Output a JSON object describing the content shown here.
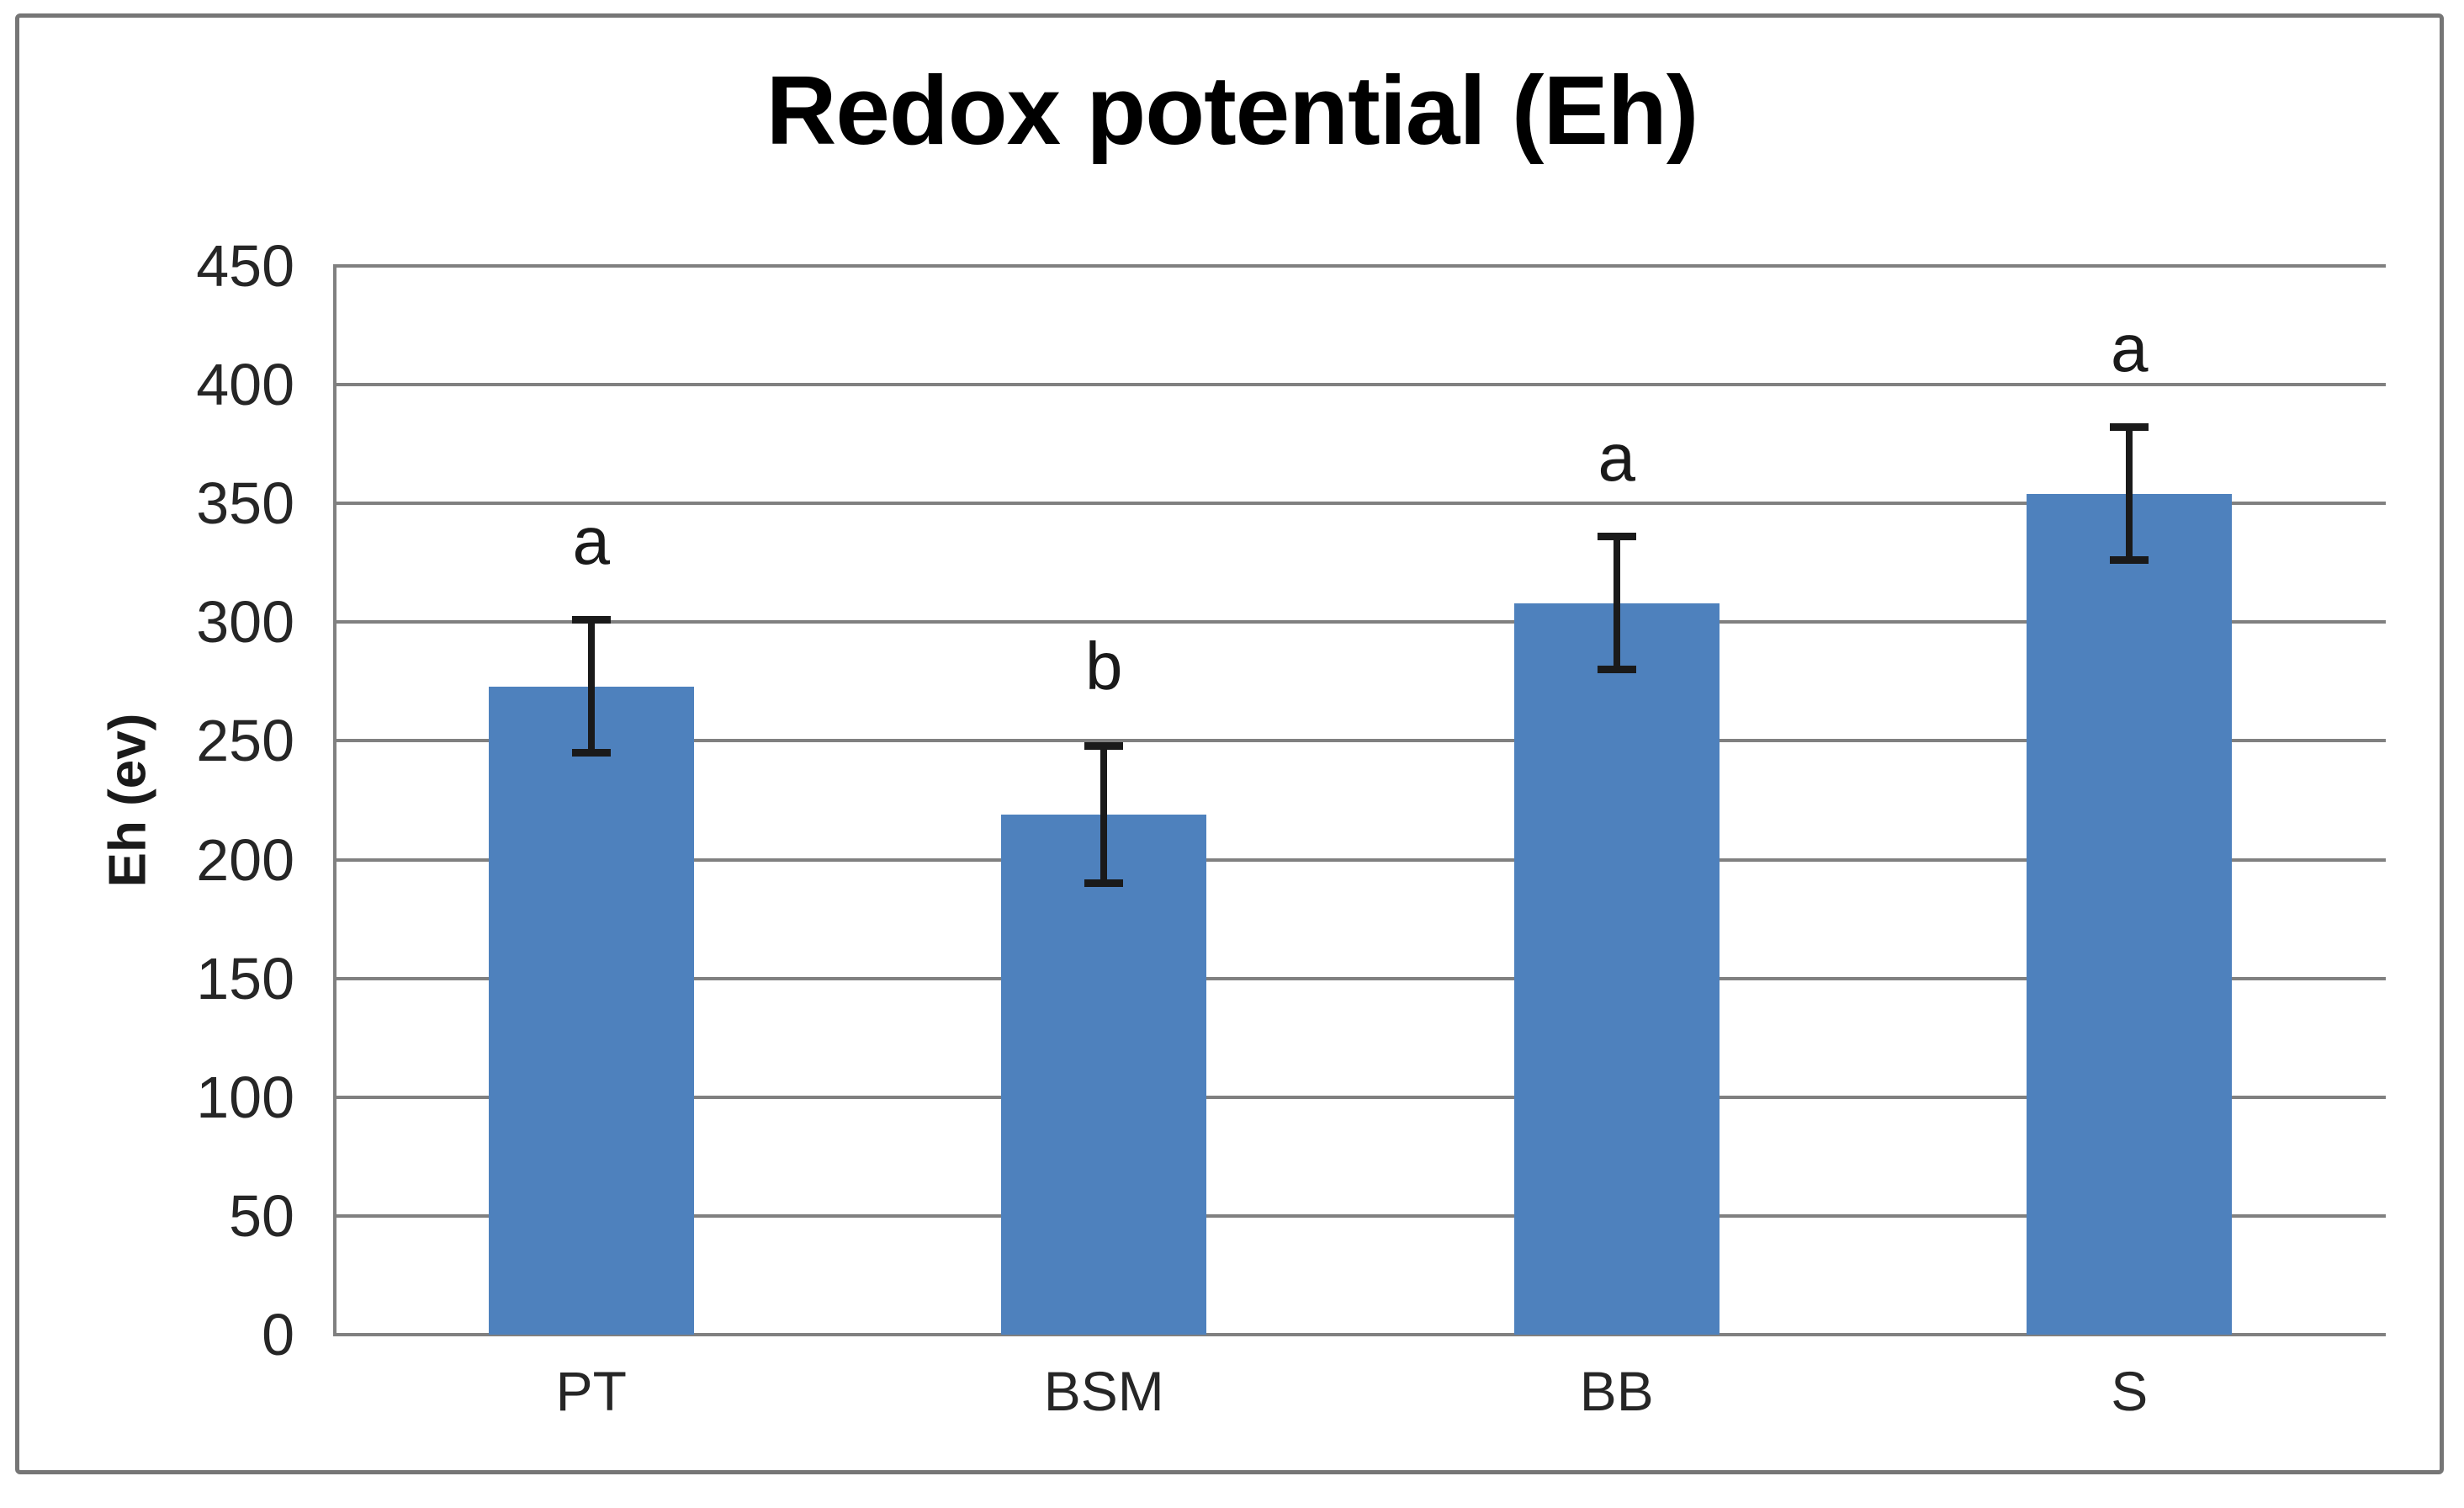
{
  "chart_data": {
    "type": "bar",
    "title": "Redox potential (Eh)",
    "ylabel": "Eh (ev)",
    "xlabel": "",
    "ylim": [
      0,
      450
    ],
    "yticks": [
      0,
      50,
      100,
      150,
      200,
      250,
      300,
      350,
      400,
      450
    ],
    "grid": true,
    "legend_position": "none",
    "categories": [
      "PT",
      "BSM",
      "BB",
      "S"
    ],
    "values": [
      273,
      219,
      308,
      354
    ],
    "error_bars": [
      28,
      29,
      28,
      28
    ],
    "significance_letters": [
      "a",
      "b",
      "a",
      "a"
    ],
    "bar_color": "#4e81bd",
    "error_bar_color": "#1a1a1a",
    "gridline_color": "#808080",
    "axis_line_color": "#808080",
    "outer_border_color": "#767676"
  }
}
